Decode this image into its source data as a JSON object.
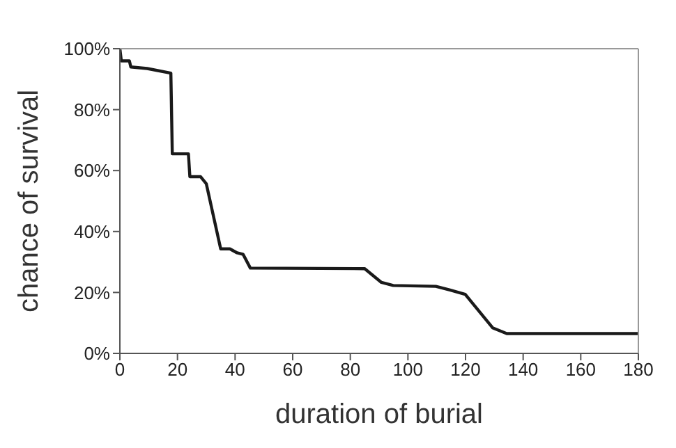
{
  "chart_data": {
    "type": "line",
    "xlabel": "duration of burial",
    "ylabel": "chance of survival",
    "x": [
      0,
      0.5,
      3.3,
      3.8,
      9.5,
      17.7,
      18.2,
      23.8,
      24.3,
      28,
      30,
      35,
      38.2,
      40.7,
      42.8,
      45.3,
      85,
      90.8,
      94.9,
      109.7,
      114.6,
      119.9,
      129.4,
      134.3,
      180
    ],
    "series": [
      {
        "color": "#1a1a1a",
        "values": [
          100,
          96,
          96,
          94,
          93.5,
          92,
          65.5,
          65.5,
          58,
          58,
          55.7,
          34.3,
          34.3,
          33,
          32.5,
          28,
          27.8,
          23.3,
          22.3,
          22,
          20.8,
          19.4,
          8.4,
          6.5,
          6.5
        ]
      }
    ],
    "xlim": [
      0,
      180
    ],
    "xticks": [
      0,
      20,
      40,
      60,
      80,
      100,
      120,
      140,
      160,
      180
    ],
    "ylim": [
      0,
      100
    ],
    "yticks": [
      {
        "value": 0,
        "label": "0%"
      },
      {
        "value": 20,
        "label": "20%"
      },
      {
        "value": 40,
        "label": "40%"
      },
      {
        "value": 60,
        "label": "60%"
      },
      {
        "value": 80,
        "label": "80%"
      },
      {
        "value": 100,
        "label": "100%"
      }
    ],
    "grid": false,
    "legend": false,
    "marker": "none",
    "line_style": "solid"
  }
}
